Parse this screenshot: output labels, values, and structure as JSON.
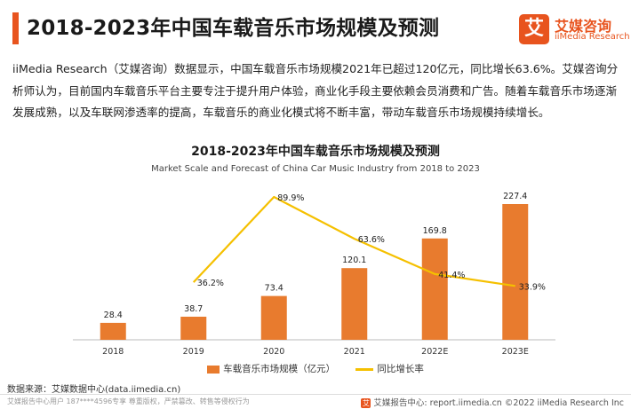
{
  "header": {
    "title": "2018-2023年中国车载音乐市场规模及预测"
  },
  "logo": {
    "cn": "艾媒咨询",
    "en": "iiMedia Research",
    "mark": "艾"
  },
  "paragraph": "iiMedia Research（艾媒咨询）数据显示，中国车载音乐市场规模2021年已超过120亿元，同比增长63.6%。艾媒咨询分析师认为，目前国内车载音乐平台主要专注于提升用户体验，商业化手段主要依赖会员消费和广告。随着车载音乐市场逐渐发展成熟，以及车联网渗透率的提高，车载音乐的商业化模式将不断丰富，带动车载音乐市场规模持续增长。",
  "chart_data": {
    "type": "bar",
    "title": "2018-2023年中国车载音乐市场规模及预测",
    "subtitle": "Market Scale and Forecast of China Car Music Industry from 2018 to 2023",
    "categories": [
      "2018",
      "2019",
      "2020",
      "2021",
      "2022E",
      "2023E"
    ],
    "series": [
      {
        "name": "车载音乐市场规模（亿元）",
        "kind": "bar",
        "color": "#e87b2e",
        "values": [
          28.4,
          38.7,
          73.4,
          120.1,
          169.8,
          227.4
        ],
        "labels": [
          "28.4",
          "38.7",
          "73.4",
          "120.1",
          "169.8",
          "227.4"
        ]
      },
      {
        "name": "同比增长率",
        "kind": "line",
        "color": "#f5c000",
        "values": [
          null,
          36.2,
          89.9,
          63.6,
          41.4,
          33.9
        ],
        "labels": [
          "",
          "36.2%",
          "89.9%",
          "63.6%",
          "41.4%",
          "33.9%"
        ]
      }
    ],
    "ylim": [
      0,
      240
    ],
    "y2lim": [
      0,
      110
    ],
    "grid": false,
    "legend": "bottom"
  },
  "source": "数据来源：艾媒数据中心(data.iimedia.cn)",
  "footer": {
    "left": "艾媒报告中心用户 187****4596专享 尊重版权，严禁篡改、转售等侵权行为",
    "mini_logo": "艾",
    "right": "艾媒报告中心: report.iimedia.cn  ©2022  iiMedia Research  Inc"
  }
}
